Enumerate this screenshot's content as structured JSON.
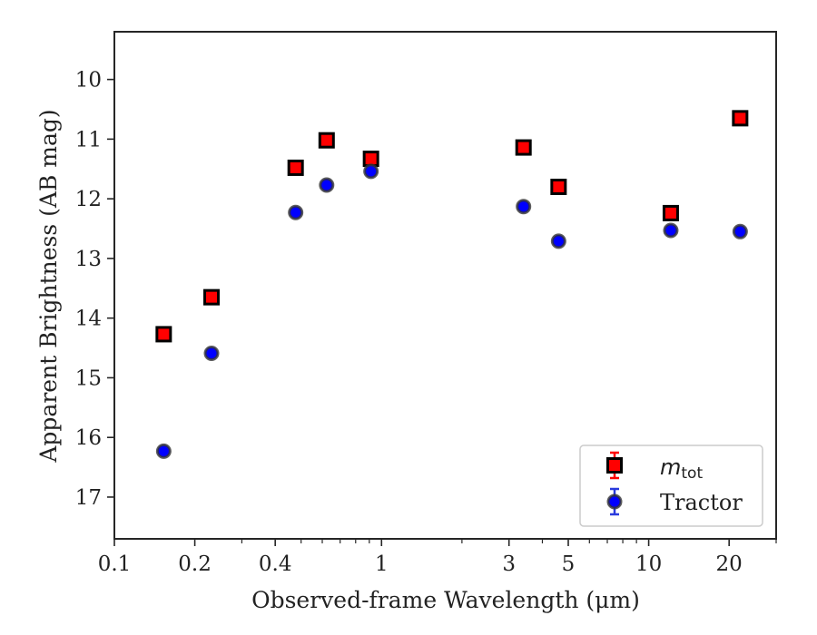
{
  "chart_data": {
    "type": "scatter",
    "title": "",
    "xlabel": "Observed-frame Wavelength (μm)",
    "ylabel": "Apparent Brightness (AB mag)",
    "x_scale": "log",
    "xlim": [
      0.1,
      30
    ],
    "ylim": [
      17.7,
      9.2
    ],
    "y_inverted": true,
    "x_ticks": [
      0.1,
      0.2,
      0.4,
      1,
      3,
      5,
      10,
      20
    ],
    "x_tick_labels": [
      "0.1",
      "0.2",
      "0.4",
      "1",
      "3",
      "5",
      "10",
      "20"
    ],
    "y_ticks": [
      10,
      11,
      12,
      13,
      14,
      15,
      16,
      17
    ],
    "y_tick_labels": [
      "10",
      "11",
      "12",
      "13",
      "14",
      "15",
      "16",
      "17"
    ],
    "grid": false,
    "legend_position": "bottom-right",
    "series": [
      {
        "name": "m_tot",
        "legend_main": "m",
        "legend_sub": "tot",
        "marker": "square",
        "color": "#ff0000",
        "edge_color": "#000000",
        "error_color": "#ff0000",
        "x": [
          0.153,
          0.231,
          0.477,
          0.623,
          0.913,
          3.4,
          4.6,
          12.1,
          22
        ],
        "y": [
          14.27,
          13.65,
          11.48,
          11.02,
          11.33,
          11.14,
          11.8,
          12.24,
          10.65
        ],
        "yerr": [
          0.03,
          0.03,
          0.02,
          0.02,
          0.02,
          0.02,
          0.02,
          0.04,
          0.05
        ]
      },
      {
        "name": "Tractor",
        "marker": "circle",
        "color": "#0000ff",
        "edge_color": "#333333",
        "error_color": "#2a3bdd",
        "x": [
          0.153,
          0.231,
          0.477,
          0.623,
          0.913,
          3.4,
          4.6,
          12.1,
          22
        ],
        "y": [
          16.23,
          14.59,
          12.23,
          11.77,
          11.54,
          12.13,
          12.71,
          12.53,
          12.55
        ],
        "yerr": [
          0.08,
          0.08,
          0.04,
          0.04,
          0.04,
          0.04,
          0.05,
          0.06,
          0.08
        ]
      }
    ]
  }
}
